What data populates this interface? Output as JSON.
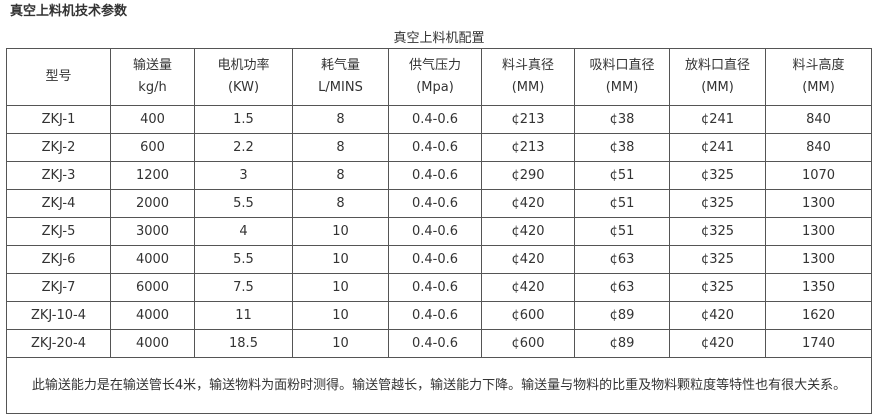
{
  "heading": "真空上料机技术参数",
  "table": {
    "caption": "真空上料机配置",
    "headers": [
      [
        "型号"
      ],
      [
        "输送量",
        "kg/h"
      ],
      [
        "电机功率",
        "(KW)"
      ],
      [
        "耗气量",
        "L/MINS"
      ],
      [
        "供气压力",
        "(Mpa)"
      ],
      [
        "料斗真径",
        "(MM)"
      ],
      [
        "吸料口直径",
        "(MM)"
      ],
      [
        "放料口直径",
        "(MM)"
      ],
      [
        "料斗高度",
        "(MM)"
      ]
    ],
    "rows": [
      [
        "ZKJ-1",
        "400",
        "1.5",
        "8",
        "0.4-0.6",
        "¢213",
        "¢38",
        "¢241",
        "840"
      ],
      [
        "ZKJ-2",
        "600",
        "2.2",
        "8",
        "0.4-0.6",
        "¢213",
        "¢38",
        "¢241",
        "840"
      ],
      [
        "ZKJ-3",
        "1200",
        "3",
        "8",
        "0.4-0.6",
        "¢290",
        "¢51",
        "¢325",
        "1070"
      ],
      [
        "ZKJ-4",
        "2000",
        "5.5",
        "8",
        "0.4-0.6",
        "¢420",
        "¢51",
        "¢325",
        "1300"
      ],
      [
        "ZKJ-5",
        "3000",
        "4",
        "10",
        "0.4-0.6",
        "¢420",
        "¢51",
        "¢325",
        "1300"
      ],
      [
        "ZKJ-6",
        "4000",
        "5.5",
        "10",
        "0.4-0.6",
        "¢420",
        "¢63",
        "¢325",
        "1300"
      ],
      [
        "ZKJ-7",
        "6000",
        "7.5",
        "10",
        "0.4-0.6",
        "¢420",
        "¢63",
        "¢325",
        "1350"
      ],
      [
        "ZKJ-10-4",
        "4000",
        "11",
        "10",
        "0.4-0.6",
        "¢600",
        "¢89",
        "¢420",
        "1620"
      ],
      [
        "ZKJ-20-4",
        "4000",
        "18.5",
        "10",
        "0.4-0.6",
        "¢600",
        "¢89",
        "¢420",
        "1740"
      ]
    ],
    "note": "此输送能力是在输送管长4米，输送物料为面粉时测得。输送管越长，输送能力下降。输送量与物料的比重及物料颗粒度等特性也有很大关系。"
  }
}
